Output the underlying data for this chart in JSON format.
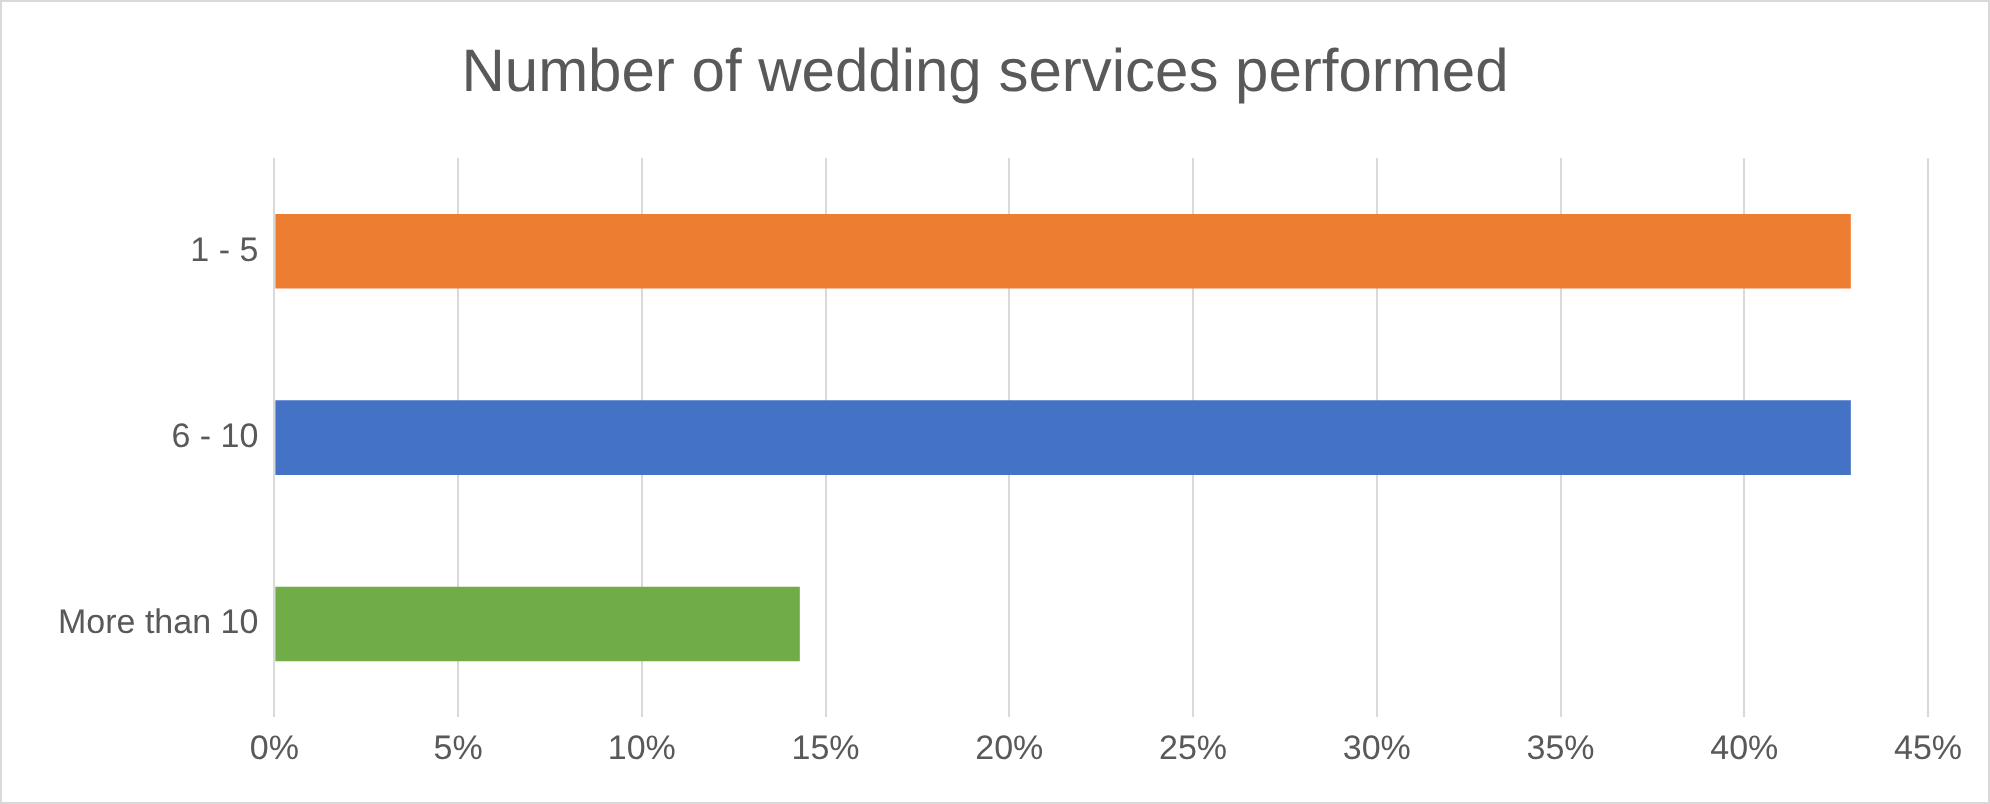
{
  "chart_data": {
    "type": "bar",
    "orientation": "horizontal",
    "title": "Number of wedding services performed",
    "categories": [
      "1 - 5",
      "6 - 10",
      "More than 10"
    ],
    "values": [
      42.9,
      42.9,
      14.3
    ],
    "colors": [
      "#ed7d31",
      "#4472c4",
      "#70ad47"
    ],
    "xlim": [
      0,
      45
    ],
    "xticks": [
      {
        "value": 0,
        "label": "0%"
      },
      {
        "value": 5,
        "label": "5%"
      },
      {
        "value": 10,
        "label": "10%"
      },
      {
        "value": 15,
        "label": "15%"
      },
      {
        "value": 20,
        "label": "20%"
      },
      {
        "value": 25,
        "label": "25%"
      },
      {
        "value": 30,
        "label": "30%"
      },
      {
        "value": 35,
        "label": "35%"
      },
      {
        "value": 40,
        "label": "40%"
      },
      {
        "value": 45,
        "label": "45%"
      }
    ],
    "grid": "x"
  }
}
